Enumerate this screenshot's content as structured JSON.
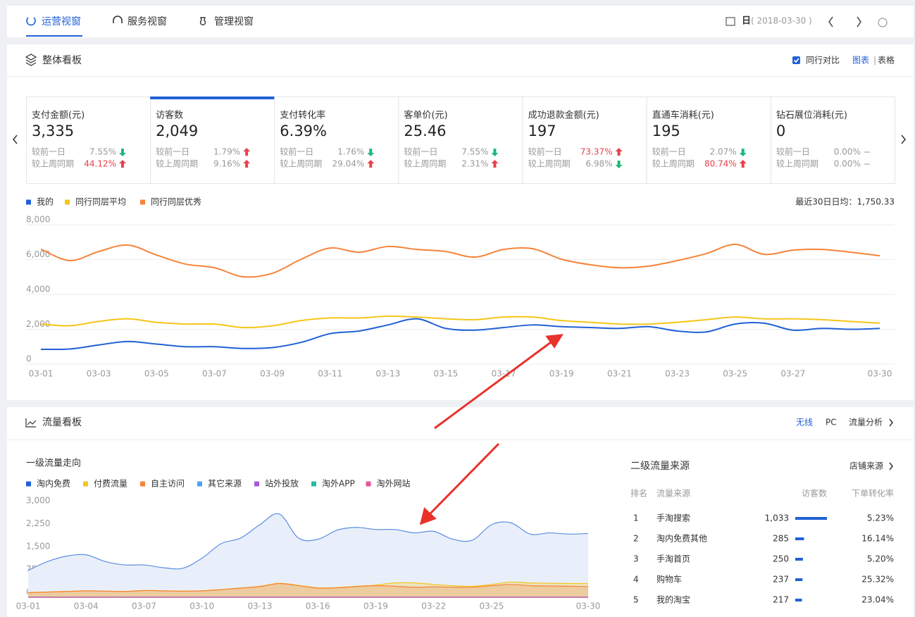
{
  "nav": {
    "tabs": [
      "运营视窗",
      "服务视窗",
      "管理视窗"
    ],
    "active_tab": 0,
    "period": "日",
    "date": "( 2018-03-30 )"
  },
  "overview": {
    "title": "整体看板",
    "compare": "同行对比",
    "compare_checked": true,
    "view_chart": "图表",
    "view_table": "表格",
    "active_metric": 1,
    "metrics": [
      {
        "label": "支付金额(元)",
        "value": "3,335",
        "changes": [
          {
            "label": "较前一日",
            "value": "7.55%",
            "trend": "down"
          },
          {
            "label": "较上周同期",
            "value": "44.12%",
            "trend": "up",
            "highlight": true
          }
        ]
      },
      {
        "label": "访客数",
        "value": "2,049",
        "changes": [
          {
            "label": "较前一日",
            "value": "1.79%",
            "trend": "up"
          },
          {
            "label": "较上周同期",
            "value": "9.16%",
            "trend": "up"
          }
        ]
      },
      {
        "label": "支付转化率",
        "value": "6.39%",
        "changes": [
          {
            "label": "较前一日",
            "value": "1.76%",
            "trend": "down"
          },
          {
            "label": "较上周同期",
            "value": "29.04%",
            "trend": "up"
          }
        ]
      },
      {
        "label": "客单价(元)",
        "value": "25.46",
        "changes": [
          {
            "label": "较前一日",
            "value": "7.55%",
            "trend": "down"
          },
          {
            "label": "较上周同期",
            "value": "2.31%",
            "trend": "up"
          }
        ]
      },
      {
        "label": "成功退款金额(元)",
        "value": "197",
        "changes": [
          {
            "label": "较前一日",
            "value": "73.37%",
            "trend": "up",
            "highlight": true
          },
          {
            "label": "较上周同期",
            "value": "6.98%",
            "trend": "down"
          }
        ]
      },
      {
        "label": "直通车消耗(元)",
        "value": "195",
        "changes": [
          {
            "label": "较前一日",
            "value": "2.07%",
            "trend": "down"
          },
          {
            "label": "较上周同期",
            "value": "80.74%",
            "trend": "up",
            "highlight": true
          }
        ]
      },
      {
        "label": "钻石展位消耗(元)",
        "value": "0",
        "changes": [
          {
            "label": "较前一日",
            "value": "0.00%",
            "trend": "flat"
          },
          {
            "label": "较上周同期",
            "value": "0.00%",
            "trend": "flat"
          }
        ]
      }
    ],
    "note": "最近30日日均：1,750.33"
  },
  "traffic": {
    "title": "流量看板",
    "tabs": [
      "无线",
      "PC",
      "流量分析"
    ],
    "active_tab": 0,
    "right_title": "二级流量来源",
    "right_link": "店铺来源",
    "headers": [
      "排名",
      "流量来源",
      "访客数",
      "下单转化率"
    ],
    "rows": [
      {
        "rank": 1,
        "source": "手淘搜索",
        "visitors": 1033,
        "visitors_label": "1,033",
        "rate": "5.23%"
      },
      {
        "rank": 2,
        "source": "淘内免费其他",
        "visitors": 285,
        "visitors_label": "285",
        "rate": "16.14%"
      },
      {
        "rank": 3,
        "source": "手淘首页",
        "visitors": 250,
        "visitors_label": "250",
        "rate": "5.20%"
      },
      {
        "rank": 4,
        "source": "购物车",
        "visitors": 237,
        "visitors_label": "237",
        "rate": "25.32%"
      },
      {
        "rank": 5,
        "source": "我的淘宝",
        "visitors": 217,
        "visitors_label": "217",
        "rate": "23.04%"
      }
    ]
  },
  "chart_data": [
    {
      "type": "line",
      "legend": "top-left",
      "grid": true,
      "categories": [
        "03-01",
        null,
        "03-03",
        null,
        "03-05",
        null,
        "03-07",
        null,
        "03-09",
        null,
        "03-11",
        null,
        "03-13",
        null,
        "03-15",
        null,
        "03-17",
        null,
        "03-19",
        null,
        "03-21",
        null,
        "03-23",
        null,
        "03-25",
        null,
        "03-27",
        null,
        null,
        "03-30"
      ],
      "ylim": [
        0,
        8000
      ],
      "yticks": [
        0,
        {
          "value": 2000,
          "label": "2,000"
        },
        {
          "value": 4000,
          "label": "4,000"
        },
        {
          "value": 6000,
          "label": "6,000"
        },
        {
          "value": 8000,
          "label": "8,000"
        }
      ],
      "series": [
        {
          "name": "我的",
          "color": "#2160d6",
          "values": [
            850,
            870,
            1100,
            1300,
            1150,
            1000,
            1000,
            900,
            950,
            1250,
            1750,
            1900,
            2250,
            2600,
            2050,
            1950,
            2100,
            2250,
            2150,
            2100,
            2050,
            2150,
            1900,
            1850,
            2300,
            2350,
            1950,
            2050,
            2000,
            2050
          ]
        },
        {
          "name": "同行同层平均",
          "color": "#f5c518",
          "values": [
            2300,
            2200,
            2450,
            2600,
            2400,
            2300,
            2300,
            2100,
            2200,
            2500,
            2650,
            2650,
            2750,
            2700,
            2600,
            2550,
            2700,
            2700,
            2500,
            2400,
            2300,
            2300,
            2400,
            2550,
            2700,
            2600,
            2600,
            2550,
            2450,
            2350
          ]
        },
        {
          "name": "同行同层优秀",
          "color": "#f5843a",
          "values": [
            6600,
            5940,
            6460,
            6830,
            6260,
            5740,
            5530,
            5010,
            5210,
            6020,
            6660,
            6420,
            6750,
            6580,
            6460,
            6140,
            6580,
            6620,
            6020,
            5700,
            5530,
            5620,
            5940,
            6340,
            6870,
            6300,
            6540,
            6580,
            6420,
            6220
          ]
        }
      ]
    },
    {
      "type": "area",
      "title": "一级流量走向",
      "legend": "top-left",
      "categories": [
        "03-01",
        null,
        null,
        "03-04",
        null,
        null,
        "03-07",
        null,
        null,
        "03-10",
        null,
        null,
        "03-13",
        null,
        null,
        "03-16",
        null,
        null,
        "03-19",
        null,
        null,
        "03-22",
        null,
        null,
        "03-25",
        null,
        null,
        null,
        null,
        "03-30"
      ],
      "ylim": [
        0,
        3000
      ],
      "yticks": [
        0,
        750,
        {
          "value": 1500,
          "label": "1,500"
        },
        {
          "value": 2250,
          "label": "2,250"
        },
        {
          "value": 3000,
          "label": "3,000"
        }
      ],
      "series": [
        {
          "name": "淘内免费",
          "color": "#2160d6",
          "values": [
            880,
            1170,
            1350,
            1390,
            1170,
            1060,
            1060,
            970,
            950,
            1280,
            1760,
            1940,
            2380,
            2730,
            1940,
            1900,
            2200,
            2290,
            2220,
            2220,
            2110,
            2160,
            1900,
            1870,
            2380,
            2440,
            2070,
            2110,
            2070,
            2090
          ]
        },
        {
          "name": "付费流量",
          "color": "#f5c518",
          "values": [
            160,
            175,
            195,
            215,
            205,
            195,
            225,
            215,
            205,
            215,
            255,
            305,
            360,
            460,
            390,
            310,
            320,
            360,
            400,
            470,
            470,
            420,
            380,
            360,
            420,
            500,
            470,
            460,
            450,
            450
          ]
        },
        {
          "name": "自主访问",
          "color": "#f5843a",
          "values": [
            150,
            170,
            190,
            210,
            200,
            190,
            220,
            210,
            200,
            210,
            250,
            300,
            350,
            450,
            380,
            300,
            310,
            350,
            380,
            360,
            330,
            340,
            330,
            330,
            380,
            420,
            380,
            370,
            360,
            350
          ]
        },
        {
          "name": "其它来源",
          "color": "#4aa3f0",
          "values": [
            10,
            10,
            10,
            10,
            10,
            10,
            10,
            10,
            10,
            10,
            10,
            10,
            10,
            10,
            10,
            10,
            10,
            10,
            10,
            10,
            10,
            10,
            10,
            10,
            10,
            10,
            10,
            10,
            10,
            10
          ]
        },
        {
          "name": "站外投放",
          "color": "#a65ad8",
          "values": [
            0,
            0,
            0,
            0,
            0,
            0,
            0,
            0,
            0,
            0,
            0,
            0,
            0,
            0,
            0,
            0,
            0,
            0,
            0,
            0,
            0,
            0,
            0,
            0,
            0,
            0,
            0,
            0,
            0,
            0
          ]
        },
        {
          "name": "淘外APP",
          "color": "#1fc0a0",
          "values": [
            5,
            5,
            5,
            5,
            5,
            5,
            5,
            5,
            5,
            5,
            5,
            5,
            5,
            5,
            5,
            5,
            5,
            5,
            5,
            5,
            5,
            5,
            5,
            5,
            5,
            5,
            5,
            5,
            5,
            5
          ]
        },
        {
          "name": "淘外网站",
          "color": "#e8559a",
          "values": [
            0,
            0,
            0,
            0,
            0,
            0,
            0,
            0,
            0,
            0,
            0,
            0,
            0,
            0,
            0,
            0,
            0,
            0,
            0,
            0,
            0,
            0,
            0,
            0,
            0,
            0,
            0,
            0,
            0,
            0
          ]
        }
      ]
    }
  ]
}
